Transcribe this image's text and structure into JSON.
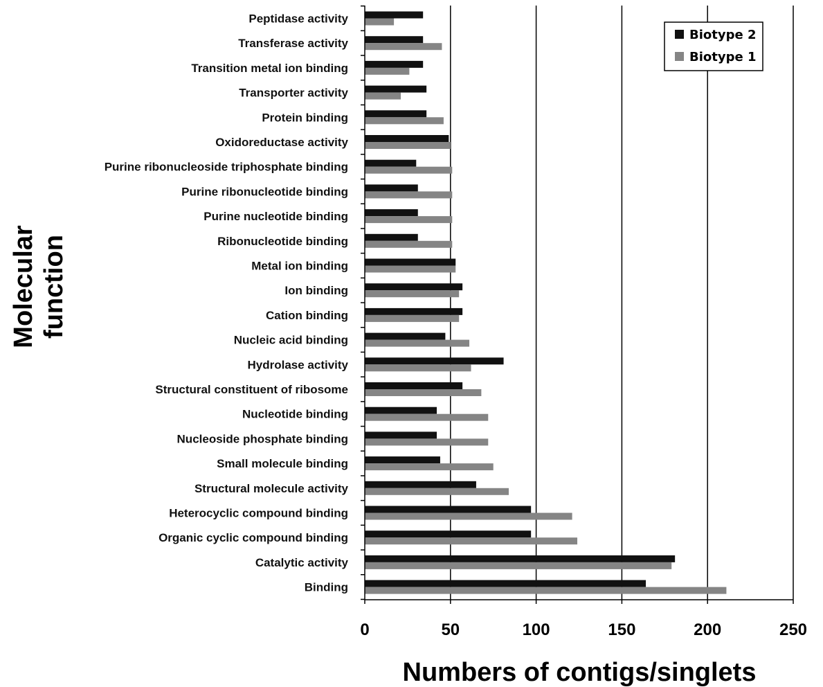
{
  "chart_data": {
    "type": "bar",
    "orientation": "horizontal",
    "categories": [
      "Peptidase activity",
      "Transferase activity",
      "Transition metal ion binding",
      "Transporter activity",
      "Protein binding",
      "Oxidoreductase activity",
      "Purine ribonucleoside triphosphate binding",
      "Purine ribonucleotide binding",
      "Purine nucleotide binding",
      "Ribonucleotide binding",
      "Metal ion binding",
      "Ion binding",
      "Cation binding",
      "Nucleic acid binding",
      "Hydrolase activity",
      "Structural constituent of ribosome",
      "Nucleotide binding",
      "Nucleoside phosphate binding",
      "Small molecule binding",
      "Structural molecule activity",
      "Heterocyclic compound binding",
      "Organic cyclic compound binding",
      "Catalytic activity",
      "Binding"
    ],
    "series": [
      {
        "name": "Biotype 2",
        "color": "#111111",
        "values": [
          34,
          34,
          34,
          36,
          36,
          49,
          30,
          31,
          31,
          31,
          53,
          57,
          57,
          47,
          81,
          57,
          42,
          42,
          44,
          65,
          97,
          97,
          181,
          164
        ]
      },
      {
        "name": "Biotype 1",
        "color": "#858585",
        "values": [
          17,
          45,
          26,
          21,
          46,
          50,
          51,
          51,
          51,
          51,
          53,
          55,
          55,
          61,
          62,
          68,
          72,
          72,
          75,
          84,
          121,
          124,
          179,
          211
        ]
      }
    ],
    "title": "",
    "xlabel": "Numbers of contigs/singlets",
    "ylabel": "Molecular function",
    "ylabel_lines": [
      "Molecular",
      "function"
    ],
    "xlim": [
      0,
      250
    ],
    "xticks": [
      0,
      50,
      100,
      150,
      200,
      250
    ],
    "grid": "vertical",
    "legend_position": "top-right"
  }
}
